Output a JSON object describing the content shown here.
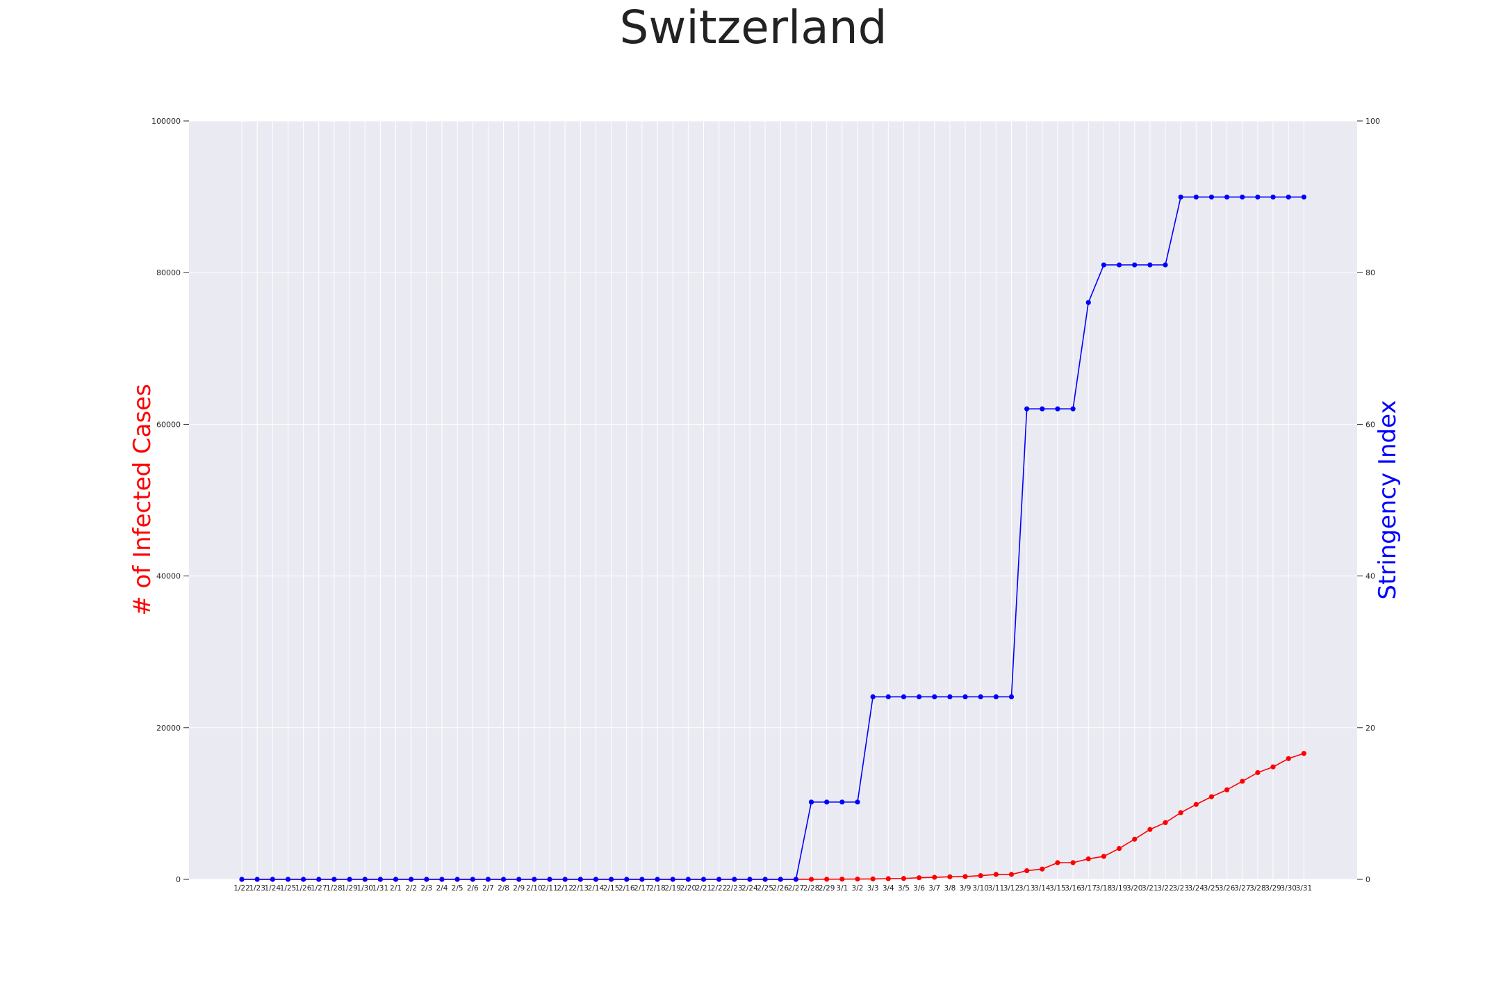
{
  "chart_data": {
    "type": "line",
    "title": "Switzerland",
    "xlabel": "",
    "ylabel_left": "# of Infected Cases",
    "ylabel_right": "Stringency Index",
    "ylim_left": [
      0,
      100000
    ],
    "ylim_right": [
      0,
      100
    ],
    "yticks_left": [
      "0",
      "20000",
      "40000",
      "60000",
      "80000",
      "100000"
    ],
    "yticks_right": [
      "0",
      "20",
      "40",
      "60",
      "80",
      "100"
    ],
    "grid": true,
    "legend": "none",
    "categories": [
      "1/22",
      "1/23",
      "1/24",
      "1/25",
      "1/26",
      "1/27",
      "1/28",
      "1/29",
      "1/30",
      "1/31",
      "2/1",
      "2/2",
      "2/3",
      "2/4",
      "2/5",
      "2/6",
      "2/7",
      "2/8",
      "2/9",
      "2/10",
      "2/11",
      "2/12",
      "2/13",
      "2/14",
      "2/15",
      "2/16",
      "2/17",
      "2/18",
      "2/19",
      "2/20",
      "2/21",
      "2/22",
      "2/23",
      "2/24",
      "2/25",
      "2/26",
      "2/27",
      "2/28",
      "2/29",
      "3/1",
      "3/2",
      "3/3",
      "3/4",
      "3/5",
      "3/6",
      "3/7",
      "3/8",
      "3/9",
      "3/10",
      "3/11",
      "3/12",
      "3/13",
      "3/14",
      "3/15",
      "3/16",
      "3/17",
      "3/18",
      "3/19",
      "3/20",
      "3/21",
      "3/22",
      "3/23",
      "3/24",
      "3/25",
      "3/26",
      "3/27",
      "3/28",
      "3/29",
      "3/30",
      "3/31"
    ],
    "series": [
      {
        "axis": "left",
        "color": "#ff0000",
        "values": [
          0,
          0,
          0,
          0,
          0,
          0,
          0,
          0,
          0,
          0,
          0,
          0,
          0,
          0,
          0,
          0,
          0,
          0,
          0,
          0,
          0,
          0,
          0,
          0,
          0,
          0,
          0,
          0,
          0,
          0,
          0,
          0,
          0,
          0,
          1,
          1,
          8,
          8,
          18,
          27,
          42,
          56,
          90,
          114,
          214,
          268,
          337,
          374,
          491,
          652,
          652,
          1139,
          1359,
          2200,
          2200,
          2700,
          3028,
          4075,
          5294,
          6575,
          7474,
          8795,
          9877,
          10897,
          11811,
          12928,
          14076,
          14829,
          15922,
          16605
        ]
      },
      {
        "axis": "right",
        "color": "#0000ff",
        "values": [
          0,
          0,
          0,
          0,
          0,
          0,
          0,
          0,
          0,
          0,
          0,
          0,
          0,
          0,
          0,
          0,
          0,
          0,
          0,
          0,
          0,
          0,
          0,
          0,
          0,
          0,
          0,
          0,
          0,
          0,
          0,
          0,
          0,
          0,
          0,
          0,
          0,
          10.19,
          10.19,
          10.19,
          10.19,
          24.07,
          24.07,
          24.07,
          24.07,
          24.07,
          24.07,
          24.07,
          24.07,
          24.07,
          24.07,
          62.04,
          62.04,
          62.04,
          62.04,
          76.06,
          81.02,
          81.02,
          81.02,
          81.02,
          81.02,
          89.97,
          89.97,
          89.97,
          89.97,
          89.97,
          89.97,
          89.97,
          89.97,
          89.97
        ]
      }
    ]
  },
  "colors": {
    "plot_background": "#eaeaf2",
    "grid": "#ffffff",
    "left_axis_label": "#ff0000",
    "right_axis_label": "#0000ff"
  }
}
